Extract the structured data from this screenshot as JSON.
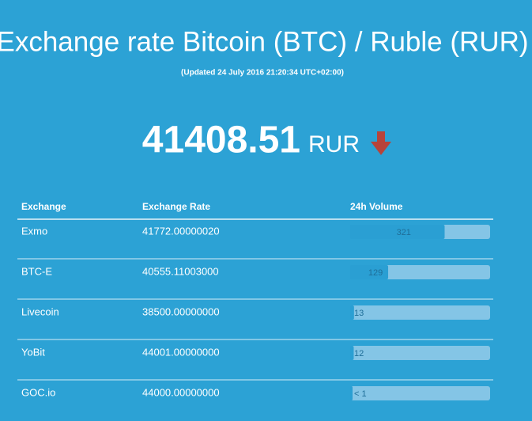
{
  "header": {
    "title": "Exchange rate Bitcoin (BTC) / Ruble (RUR)",
    "updated": "(Updated 24 July 2016 21:20:34 UTC+02:00)"
  },
  "price": {
    "value": "41408.51",
    "currency": "RUR"
  },
  "table": {
    "columns": [
      "Exchange",
      "Exchange Rate",
      "24h Volume"
    ],
    "rows": [
      {
        "exchange": "Exmo",
        "rate": "41772.00000020",
        "volume": 321
      },
      {
        "exchange": "BTC-E",
        "rate": "40555.11003000",
        "volume": 129
      },
      {
        "exchange": "Livecoin",
        "rate": "38500.00000000",
        "volume": 13
      },
      {
        "exchange": "YoBit",
        "rate": "44001.00000000",
        "volume": 12
      },
      {
        "exchange": "GOC.io",
        "rate": "44000.00000000",
        "volume": {
          "value": 0.5,
          "label": "< 1"
        }
      }
    ]
  }
}
